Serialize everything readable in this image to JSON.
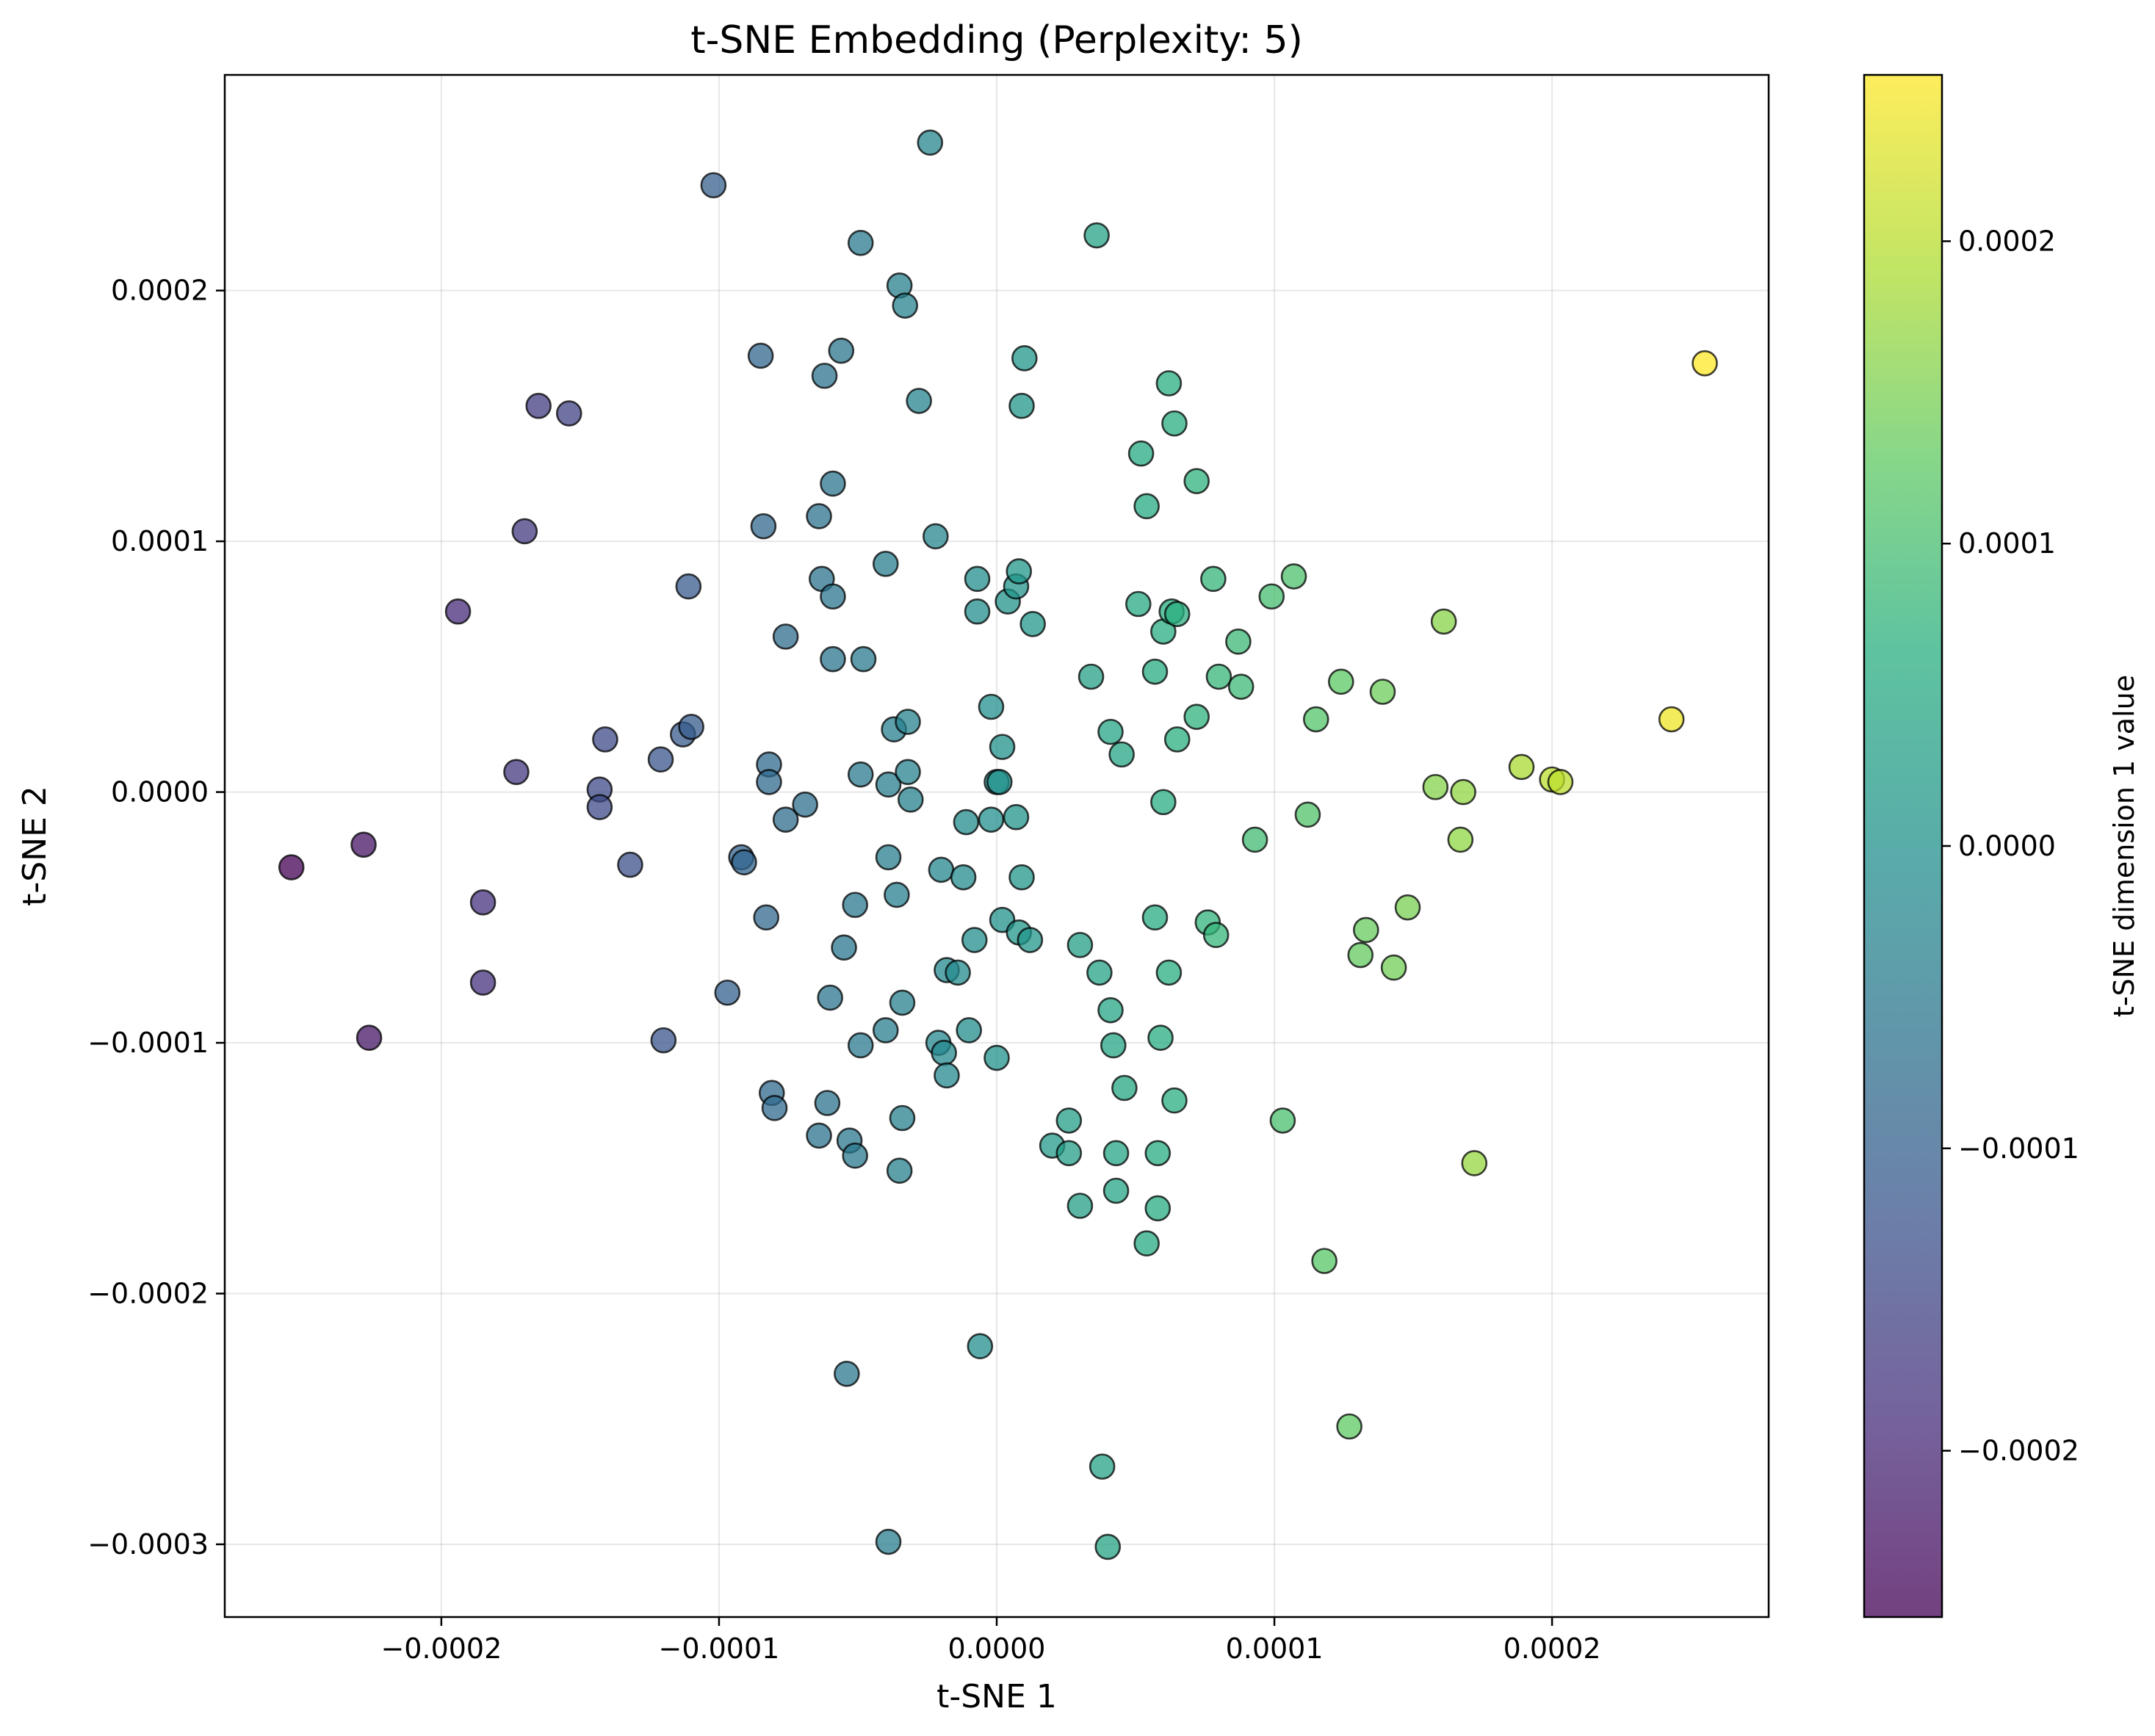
{
  "chart_data": {
    "type": "scatter",
    "title": "t-SNE Embedding (Perplexity: 5)",
    "xlabel": "t-SNE 1",
    "ylabel": "t-SNE 2",
    "xlim": [
      -0.000278,
      0.000278
    ],
    "ylim": [
      -0.000329,
      0.000286
    ],
    "xticks": [
      -0.0002,
      -0.0001,
      0.0,
      0.0001,
      0.0002
    ],
    "xtick_labels": [
      "−0.0002",
      "−0.0001",
      "0.0000",
      "0.0001",
      "0.0002"
    ],
    "yticks": [
      -0.0003,
      -0.0002,
      -0.0001,
      0.0,
      0.0001,
      0.0002
    ],
    "ytick_labels": [
      "−0.0003",
      "−0.0002",
      "−0.0001",
      "0.0000",
      "0.0001",
      "0.0002"
    ],
    "grid": true,
    "colormap": "viridis",
    "colorbar": {
      "label": "t-SNE dimension 1 value",
      "range": [
        -0.000255,
        0.000255
      ],
      "ticks": [
        -0.0002,
        -0.0001,
        0.0,
        0.0001,
        0.0002
      ],
      "tick_labels": [
        "−0.0002",
        "−0.0001",
        "0.0000",
        "0.0001",
        "0.0002"
      ]
    },
    "points": [
      [
        -0.000254,
        -3e-05
      ],
      [
        -0.000228,
        -2.1e-05
      ],
      [
        -0.000226,
        -9.8e-05
      ],
      [
        -0.000194,
        7.2e-05
      ],
      [
        -0.000185,
        -4.4e-05
      ],
      [
        -0.000185,
        -7.6e-05
      ],
      [
        -0.000173,
        8e-06
      ],
      [
        -0.00017,
        0.000104
      ],
      [
        -0.000165,
        0.000154
      ],
      [
        -0.000154,
        0.000151
      ],
      [
        -0.000143,
        1e-06
      ],
      [
        -0.000143,
        -6e-06
      ],
      [
        -0.000141,
        2.1e-05
      ],
      [
        -0.000132,
        -2.9e-05
      ],
      [
        -0.000121,
        1.3e-05
      ],
      [
        -0.00012,
        -9.9e-05
      ],
      [
        -0.000113,
        2.3e-05
      ],
      [
        -0.00011,
        2.6e-05
      ],
      [
        -0.000111,
        8.2e-05
      ],
      [
        -0.000102,
        0.000242
      ],
      [
        -9.7e-05,
        -8e-05
      ],
      [
        -9.2e-05,
        -2.6e-05
      ],
      [
        -9.1e-05,
        -2.8e-05
      ],
      [
        -8.5e-05,
        0.000174
      ],
      [
        -8.4e-05,
        0.000106
      ],
      [
        -8.3e-05,
        -5e-05
      ],
      [
        -8.2e-05,
        1.1e-05
      ],
      [
        -8.2e-05,
        4e-06
      ],
      [
        -8.1e-05,
        -0.00012
      ],
      [
        -8e-05,
        -0.000126
      ],
      [
        -7.6e-05,
        6.2e-05
      ],
      [
        -7.6e-05,
        -1.1e-05
      ],
      [
        -6.9e-05,
        -5e-06
      ],
      [
        -6.4e-05,
        0.00011
      ],
      [
        -6.3e-05,
        8.5e-05
      ],
      [
        -6.4e-05,
        -0.000137
      ],
      [
        -6.2e-05,
        0.000166
      ],
      [
        -6.1e-05,
        -0.000124
      ],
      [
        -6e-05,
        -8.2e-05
      ],
      [
        -5.9e-05,
        0.000123
      ],
      [
        -5.9e-05,
        7.8e-05
      ],
      [
        -5.9e-05,
        5.3e-05
      ],
      [
        -5.6e-05,
        0.000176
      ],
      [
        -5.5e-05,
        -6.2e-05
      ],
      [
        -5.4e-05,
        -0.000232
      ],
      [
        -5.3e-05,
        -0.000139
      ],
      [
        -5.1e-05,
        -0.000145
      ],
      [
        -5.1e-05,
        -4.5e-05
      ],
      [
        -4.9e-05,
        0.000219
      ],
      [
        -4.9e-05,
        7e-06
      ],
      [
        -4.9e-05,
        -0.000101
      ],
      [
        -4.8e-05,
        5.3e-05
      ],
      [
        -4e-05,
        9.1e-05
      ],
      [
        -4e-05,
        -9.5e-05
      ],
      [
        -3.9e-05,
        3e-06
      ],
      [
        -3.9e-05,
        -2.6e-05
      ],
      [
        -3.9e-05,
        -0.000299
      ],
      [
        -3.7e-05,
        2.5e-05
      ],
      [
        -3.6e-05,
        -4.1e-05
      ],
      [
        -3.5e-05,
        0.000202
      ],
      [
        -3.4e-05,
        -8.4e-05
      ],
      [
        -3.4e-05,
        -0.00013
      ],
      [
        -3.5e-05,
        -0.000151
      ],
      [
        -3.3e-05,
        0.000194
      ],
      [
        -3.2e-05,
        8e-06
      ],
      [
        -3.2e-05,
        2.8e-05
      ],
      [
        -3.1e-05,
        -3e-06
      ],
      [
        -2.8e-05,
        0.000156
      ],
      [
        -2.4e-05,
        0.000259
      ],
      [
        -2.2e-05,
        0.000102
      ],
      [
        -2.1e-05,
        -0.0001
      ],
      [
        -2e-05,
        -3.1e-05
      ],
      [
        -1.9e-05,
        -0.000104
      ],
      [
        -1.8e-05,
        -0.000113
      ],
      [
        -1.8e-05,
        -7.1e-05
      ],
      [
        -1.4e-05,
        -7.2e-05
      ],
      [
        -1.2e-05,
        -3.4e-05
      ],
      [
        -1.1e-05,
        -1.2e-05
      ],
      [
        -1e-05,
        -9.5e-05
      ],
      [
        -8e-06,
        -5.9e-05
      ],
      [
        -7e-06,
        7.2e-05
      ],
      [
        -7e-06,
        8.5e-05
      ],
      [
        -6e-06,
        -0.000221
      ],
      [
        -2e-06,
        3.4e-05
      ],
      [
        -2e-06,
        -1.1e-05
      ],
      [
        0.0,
        4e-06
      ],
      [
        0.0,
        -0.000106
      ],
      [
        1e-06,
        4e-06
      ],
      [
        2e-06,
        1.8e-05
      ],
      [
        2e-06,
        -5.1e-05
      ],
      [
        4e-06,
        7.6e-05
      ],
      [
        7e-06,
        8.2e-05
      ],
      [
        7e-06,
        -1e-05
      ],
      [
        8e-06,
        -5.6e-05
      ],
      [
        8e-06,
        8.8e-05
      ],
      [
        9e-06,
        0.000154
      ],
      [
        9e-06,
        -3.4e-05
      ],
      [
        1e-05,
        0.000173
      ],
      [
        1.2e-05,
        -5.9e-05
      ],
      [
        1.3e-05,
        6.7e-05
      ],
      [
        2e-05,
        -0.000141
      ],
      [
        2.6e-05,
        -0.000131
      ],
      [
        2.6e-05,
        -0.000144
      ],
      [
        3e-05,
        -6.1e-05
      ],
      [
        3e-05,
        -0.000165
      ],
      [
        3.4e-05,
        4.6e-05
      ],
      [
        3.6e-05,
        0.000222
      ],
      [
        3.7e-05,
        -7.2e-05
      ],
      [
        3.8e-05,
        -0.000269
      ],
      [
        4e-05,
        -0.000301
      ],
      [
        4.1e-05,
        -8.7e-05
      ],
      [
        4.1e-05,
        2.4e-05
      ],
      [
        4.2e-05,
        -0.000101
      ],
      [
        4.3e-05,
        -0.000159
      ],
      [
        4.3e-05,
        -0.000144
      ],
      [
        4.5e-05,
        1.5e-05
      ],
      [
        4.6e-05,
        -0.000118
      ],
      [
        5.1e-05,
        7.5e-05
      ],
      [
        5.2e-05,
        0.000135
      ],
      [
        5.4e-05,
        0.000114
      ],
      [
        5.4e-05,
        -0.00018
      ],
      [
        5.7e-05,
        4.8e-05
      ],
      [
        5.7e-05,
        -5e-05
      ],
      [
        5.8e-05,
        -0.000144
      ],
      [
        5.8e-05,
        -0.000166
      ],
      [
        5.9e-05,
        -9.8e-05
      ],
      [
        6e-05,
        6.4e-05
      ],
      [
        6e-05,
        -4e-06
      ],
      [
        6.2e-05,
        0.000163
      ],
      [
        6.2e-05,
        -7.2e-05
      ],
      [
        6.3e-05,
        7.2e-05
      ],
      [
        6.4e-05,
        0.000147
      ],
      [
        6.4e-05,
        -0.000123
      ],
      [
        6.5e-05,
        7.1e-05
      ],
      [
        6.5e-05,
        2.1e-05
      ],
      [
        7.2e-05,
        0.000124
      ],
      [
        7.2e-05,
        3e-05
      ],
      [
        7.6e-05,
        -5.2e-05
      ],
      [
        7.8e-05,
        8.5e-05
      ],
      [
        7.9e-05,
        -5.7e-05
      ],
      [
        8e-05,
        4.6e-05
      ],
      [
        8.7e-05,
        6e-05
      ],
      [
        8.8e-05,
        4.2e-05
      ],
      [
        9.3e-05,
        -1.9e-05
      ],
      [
        9.9e-05,
        7.8e-05
      ],
      [
        0.000103,
        -0.000131
      ],
      [
        0.000107,
        8.6e-05
      ],
      [
        0.000112,
        -9e-06
      ],
      [
        0.000115,
        2.9e-05
      ],
      [
        0.000118,
        -0.000187
      ],
      [
        0.000124,
        4.4e-05
      ],
      [
        0.000127,
        -0.000253
      ],
      [
        0.000131,
        -6.5e-05
      ],
      [
        0.000133,
        -5.5e-05
      ],
      [
        0.000139,
        4e-05
      ],
      [
        0.000143,
        -7e-05
      ],
      [
        0.000148,
        -4.6e-05
      ],
      [
        0.000158,
        2e-06
      ],
      [
        0.000161,
        6.8e-05
      ],
      [
        0.000167,
        -1.9e-05
      ],
      [
        0.000168,
        0.0
      ],
      [
        0.000172,
        -0.000148
      ],
      [
        0.000189,
        1e-05
      ],
      [
        0.0002,
        5e-06
      ],
      [
        0.000203,
        4e-06
      ],
      [
        0.000243,
        2.9e-05
      ],
      [
        0.000255,
        0.000171
      ]
    ]
  }
}
